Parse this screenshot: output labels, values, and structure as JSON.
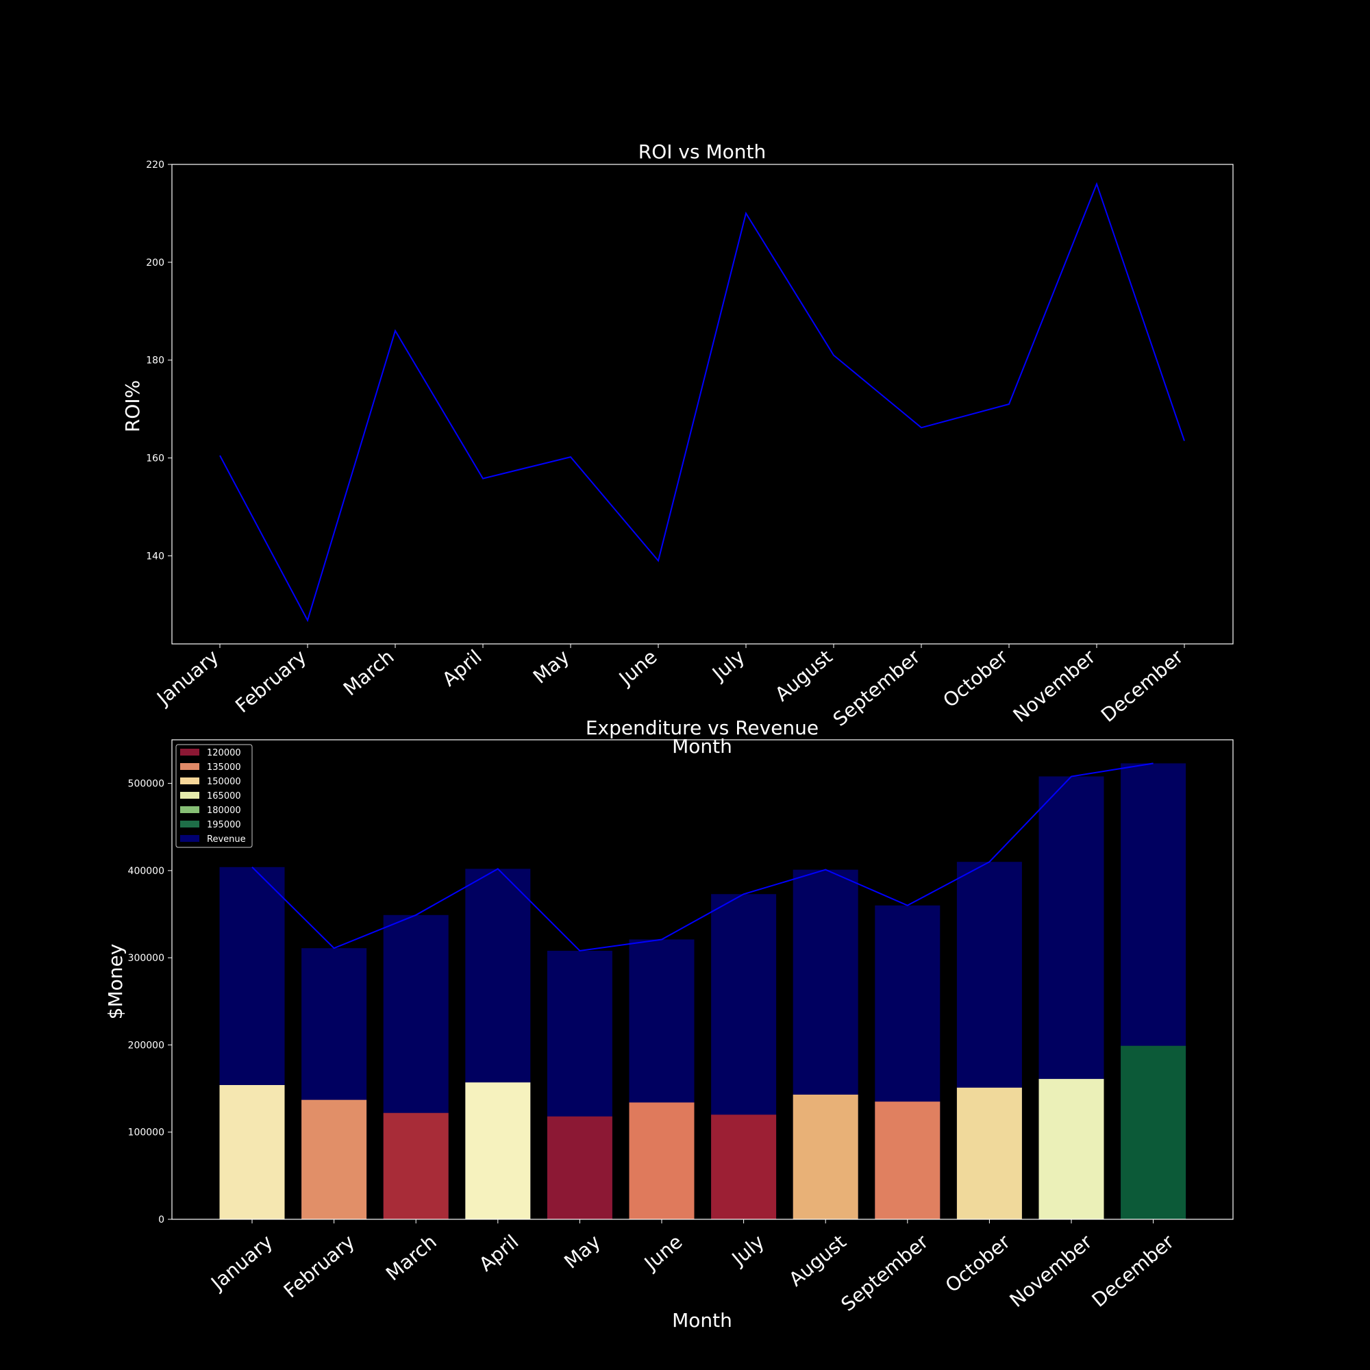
{
  "chart_data": [
    {
      "type": "line",
      "title": "ROI vs Month",
      "xlabel": "Month",
      "ylabel": "ROI%",
      "categories": [
        "January",
        "February",
        "March",
        "April",
        "May",
        "June",
        "July",
        "August",
        "September",
        "October",
        "November",
        "December"
      ],
      "yticks": [
        140,
        160,
        180,
        200,
        220
      ],
      "ylim": [
        122,
        220
      ],
      "grid": false,
      "series": [
        {
          "values": [
            160.5,
            126.8,
            186,
            155.8,
            160.2,
            139,
            210,
            181,
            166.2,
            171,
            216,
            163.5
          ],
          "color": "#0000ff"
        }
      ]
    },
    {
      "type": "bar",
      "title": "Expenditure vs Revenue",
      "xlabel": "Month",
      "ylabel": "$Money",
      "categories": [
        "January",
        "February",
        "March",
        "April",
        "May",
        "June",
        "July",
        "August",
        "September",
        "October",
        "November",
        "December"
      ],
      "yticks": [
        0,
        100000,
        200000,
        300000,
        400000,
        500000
      ],
      "ylim": [
        0,
        550000
      ],
      "grid": false,
      "legend_position": "upper-left",
      "legend": [
        {
          "label": "120000",
          "color": "#8c1834"
        },
        {
          "label": "135000",
          "color": "#e18a68"
        },
        {
          "label": "150000",
          "color": "#f5d698"
        },
        {
          "label": "165000",
          "color": "#e5ecac"
        },
        {
          "label": "180000",
          "color": "#87bf76"
        },
        {
          "label": "195000",
          "color": "#1e6e48"
        },
        {
          "label": "Revenue",
          "color": "#000070"
        }
      ],
      "expenditure": [
        154000,
        137000,
        122000,
        157000,
        118000,
        134000,
        120000,
        143000,
        135000,
        151000,
        161000,
        199000
      ],
      "expenditure_colors": [
        "#f5e7b1",
        "#e18f68",
        "#a82c38",
        "#f6f2be",
        "#8c1834",
        "#df7a5c",
        "#9c1f34",
        "#e8b177",
        "#e08060",
        "#f0d99b",
        "#ebf0b8",
        "#0c5a38"
      ],
      "revenue": [
        404000,
        311000,
        349000,
        402000,
        308000,
        321000,
        373000,
        401000,
        360000,
        410000,
        508000,
        523000
      ],
      "revenue_color": "#000060",
      "line_color": "#0000ff"
    }
  ]
}
